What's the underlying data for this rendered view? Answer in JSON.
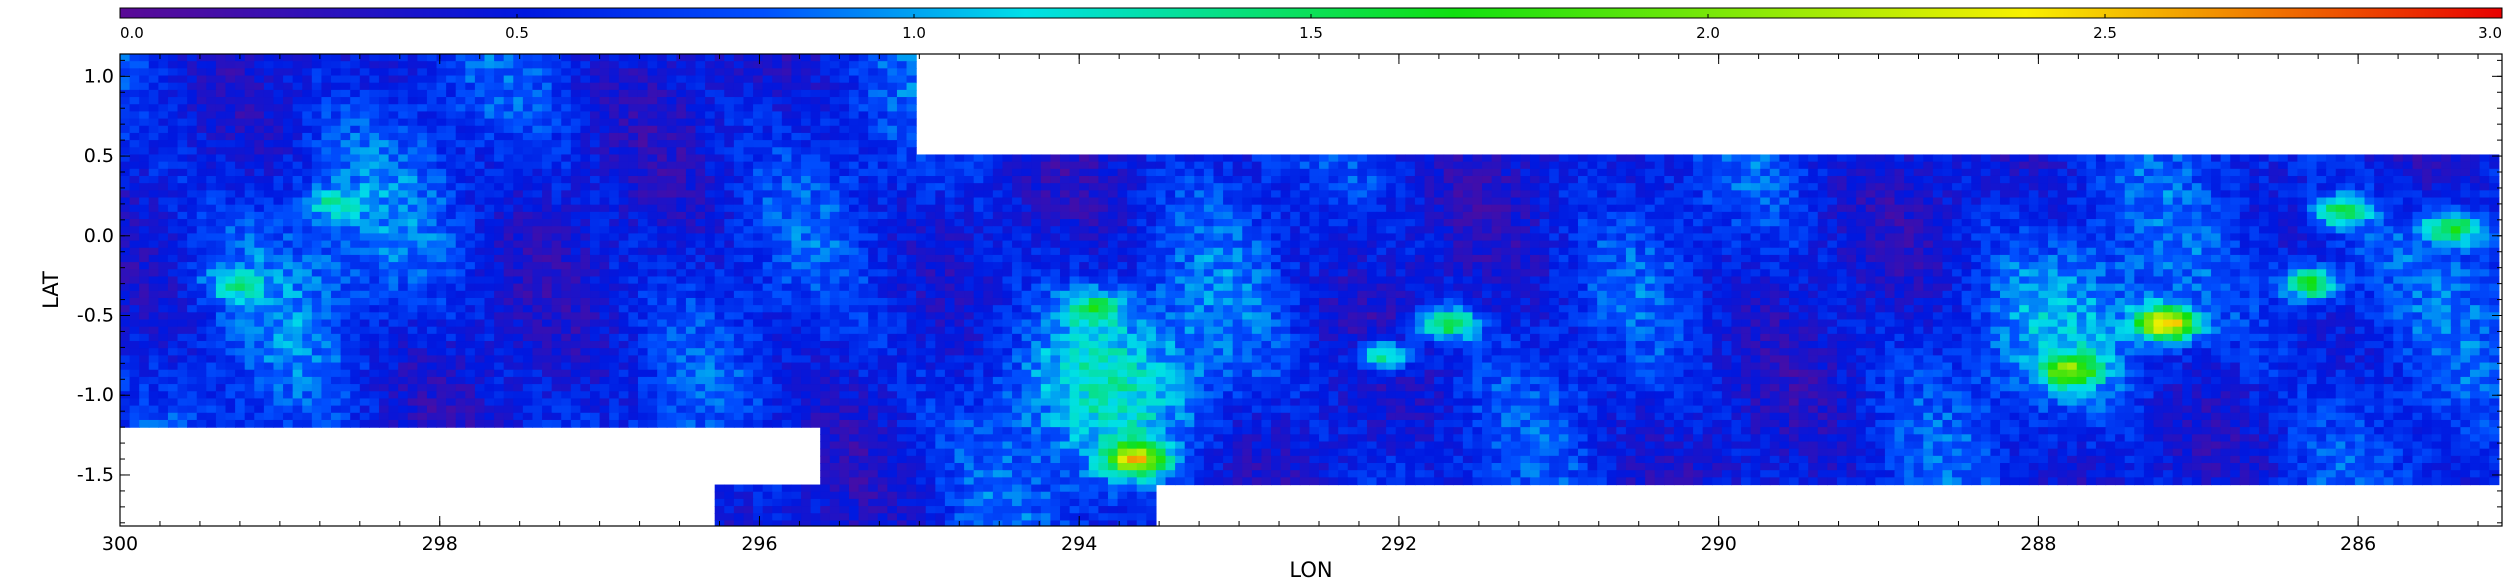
{
  "chart_data": {
    "type": "heatmap",
    "colormap": "rainbow",
    "colorbar": {
      "position": "top",
      "range": [
        0.0,
        3.0
      ],
      "ticks": [
        "0.0",
        "0.5",
        "1.0",
        "1.5",
        "2.0",
        "2.5",
        "3.0"
      ],
      "colors": [
        "#5a0a96",
        "#0018e0",
        "#0050ff",
        "#00e0e8",
        "#10e010",
        "#f8f000",
        "#e80000"
      ]
    },
    "xlabel": "LON",
    "ylabel": "LAT",
    "x_reversed": true,
    "xlim": [
      300.0,
      285.1
    ],
    "ylim": [
      -1.82,
      1.14
    ],
    "xticks": [
      "300",
      "298",
      "296",
      "294",
      "292",
      "290",
      "288",
      "286"
    ],
    "yticks": [
      "1.0",
      "0.5",
      "0.0",
      "-0.5",
      "-1.0",
      "-1.5"
    ],
    "coverage": [
      {
        "lon_range": [
          300.0,
          295.0
        ],
        "lat_range": [
          -1.2,
          1.12
        ]
      },
      {
        "lon_range": [
          295.0,
          285.1
        ],
        "lat_range": [
          -1.54,
          0.53
        ]
      },
      {
        "lon_range": [
          296.3,
          293.5
        ],
        "lat_range": [
          -1.82,
          -1.54
        ]
      },
      {
        "lon_range": [
          295.6,
          295.0
        ],
        "lat_range": [
          -1.82,
          -1.2
        ]
      }
    ],
    "hotspots": [
      {
        "lon": 293.65,
        "lat": -1.4,
        "value": 2.4
      },
      {
        "lon": 293.9,
        "lat": -0.45,
        "value": 1.6
      },
      {
        "lon": 292.1,
        "lat": -0.75,
        "value": 1.9
      },
      {
        "lon": 291.7,
        "lat": -0.55,
        "value": 2.0
      },
      {
        "lon": 287.2,
        "lat": -0.55,
        "value": 2.8
      },
      {
        "lon": 287.8,
        "lat": -0.85,
        "value": 2.0
      },
      {
        "lon": 286.3,
        "lat": -0.3,
        "value": 2.1
      },
      {
        "lon": 286.1,
        "lat": 0.15,
        "value": 1.8
      },
      {
        "lon": 285.4,
        "lat": 0.05,
        "value": 1.9
      },
      {
        "lon": 298.7,
        "lat": 0.2,
        "value": 1.4
      },
      {
        "lon": 299.3,
        "lat": -0.3,
        "value": 1.4
      }
    ]
  }
}
